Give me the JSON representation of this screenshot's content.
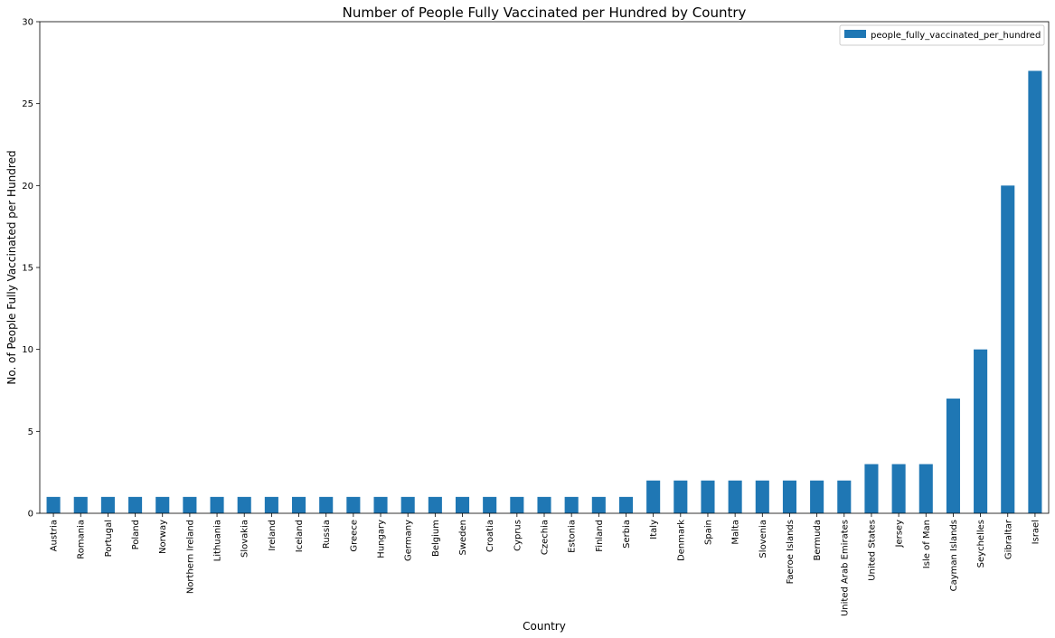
{
  "chart_data": {
    "type": "bar",
    "title": "Number of People Fully Vaccinated per Hundred by Country",
    "xlabel": "Country",
    "ylabel": "No. of People Fully Vaccinated per Hundred",
    "ylim": [
      0,
      30
    ],
    "yticks": [
      0,
      5,
      10,
      15,
      20,
      25,
      30
    ],
    "grid": false,
    "legend_position": "top-right",
    "categories": [
      "Austria",
      "Romania",
      "Portugal",
      "Poland",
      "Norway",
      "Northern Ireland",
      "Lithuania",
      "Slovakia",
      "Ireland",
      "Iceland",
      "Russia",
      "Greece",
      "Hungary",
      "Germany",
      "Belgium",
      "Sweden",
      "Croatia",
      "Cyprus",
      "Czechia",
      "Estonia",
      "Finland",
      "Serbia",
      "Italy",
      "Denmark",
      "Spain",
      "Malta",
      "Slovenia",
      "Faeroe Islands",
      "Bermuda",
      "United Arab Emirates",
      "United States",
      "Jersey",
      "Isle of Man",
      "Cayman Islands",
      "Seychelles",
      "Gibraltar",
      "Israel"
    ],
    "series": [
      {
        "name": "people_fully_vaccinated_per_hundred",
        "color": "#1f77b4",
        "values": [
          1,
          1,
          1,
          1,
          1,
          1,
          1,
          1,
          1,
          1,
          1,
          1,
          1,
          1,
          1,
          1,
          1,
          1,
          1,
          1,
          1,
          1,
          2,
          2,
          2,
          2,
          2,
          2,
          2,
          2,
          3,
          3,
          3,
          7,
          10,
          20,
          27
        ]
      }
    ]
  }
}
